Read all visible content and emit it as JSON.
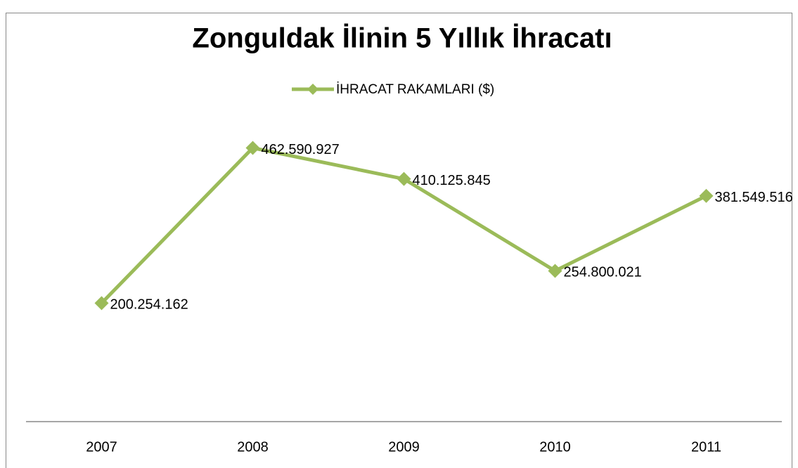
{
  "chart_data": {
    "type": "line",
    "title": "Zonguldak İlinin 5 Yıllık İhracatı",
    "categories": [
      "2007",
      "2008",
      "2009",
      "2010",
      "2011"
    ],
    "series": [
      {
        "name": "İHRACAT RAKAMLARI ($)",
        "color": "#9bbb59",
        "values": [
          200254162,
          462590927,
          410125845,
          254800021,
          381549516
        ],
        "value_labels": [
          "200.254.162",
          "462.590.927",
          "410.125.845",
          "254.800.021",
          "381.549.516"
        ]
      }
    ],
    "ylim": [
      0,
      500000000
    ],
    "legend": "top"
  }
}
